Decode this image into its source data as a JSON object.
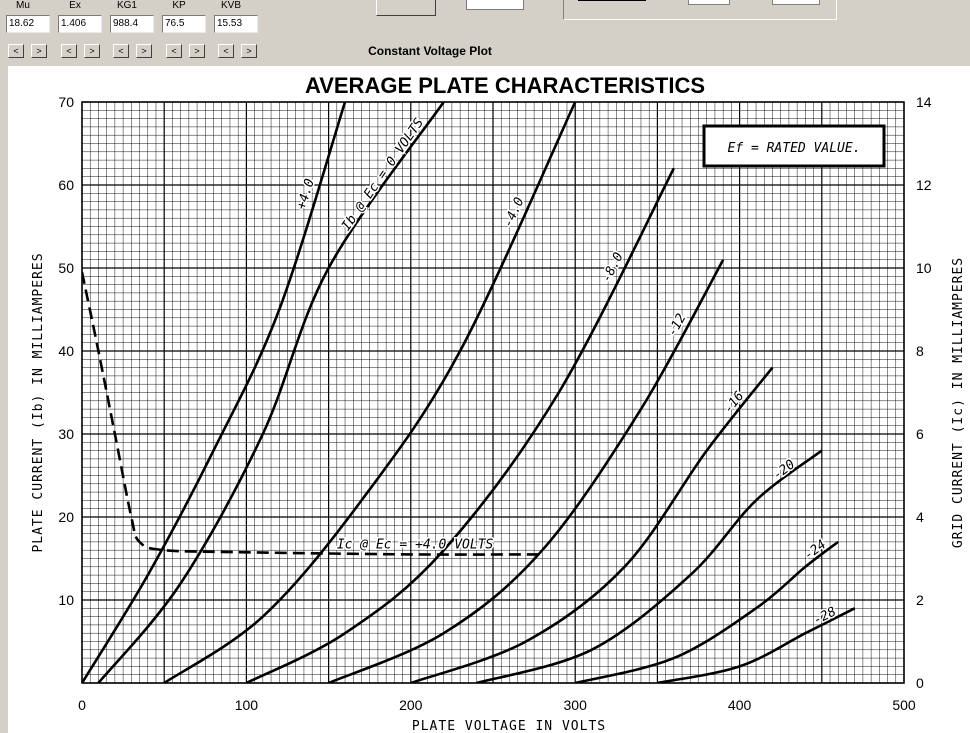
{
  "params": [
    {
      "label": "Mu",
      "value": "18.62"
    },
    {
      "label": "Ex",
      "value": "1.406"
    },
    {
      "label": "KG1",
      "value": "988.4"
    },
    {
      "label": "KP",
      "value": "76.5"
    },
    {
      "label": "KVB",
      "value": "15.53"
    }
  ],
  "spin_left": "<",
  "spin_right": ">",
  "plot_title": "Constant Voltage Plot",
  "chart_data": {
    "type": "line",
    "title": "AVERAGE PLATE CHARACTERISTICS",
    "xlabel": "PLATE VOLTAGE IN VOLTS",
    "ylabel": "PLATE CURRENT (Ib) IN MILLIAMPERES",
    "y2label": "GRID CURRENT (Ic) IN MILLIAMPERES",
    "xlim": [
      0,
      500
    ],
    "ylim": [
      0,
      70
    ],
    "y2lim": [
      0,
      14
    ],
    "xticks": [
      0,
      100,
      200,
      300,
      400,
      500
    ],
    "yticks": [
      10,
      20,
      30,
      40,
      50,
      60,
      70
    ],
    "y2ticks": [
      0,
      2,
      4,
      6,
      8,
      10,
      12,
      14
    ],
    "grid": true,
    "note": "Ef = RATED VALUE.",
    "series": [
      {
        "name": "+4.0",
        "points": [
          [
            0,
            0
          ],
          [
            40,
            13
          ],
          [
            80,
            28
          ],
          [
            120,
            45
          ],
          [
            160,
            70
          ]
        ]
      },
      {
        "name": "Ib @ Ec = 0 VOLTS",
        "points": [
          [
            10,
            0
          ],
          [
            60,
            12
          ],
          [
            110,
            30
          ],
          [
            150,
            50
          ],
          [
            220,
            70
          ]
        ]
      },
      {
        "name": "-4.0",
        "points": [
          [
            50,
            0
          ],
          [
            110,
            8
          ],
          [
            170,
            22
          ],
          [
            230,
            40
          ],
          [
            300,
            70
          ]
        ]
      },
      {
        "name": "-8.0",
        "points": [
          [
            100,
            0
          ],
          [
            160,
            6
          ],
          [
            220,
            16
          ],
          [
            290,
            35
          ],
          [
            360,
            62
          ]
        ]
      },
      {
        "name": "-12",
        "points": [
          [
            150,
            0
          ],
          [
            220,
            6
          ],
          [
            280,
            16
          ],
          [
            340,
            33
          ],
          [
            390,
            51
          ]
        ]
      },
      {
        "name": "-16",
        "points": [
          [
            200,
            0
          ],
          [
            270,
            5
          ],
          [
            330,
            14
          ],
          [
            380,
            28
          ],
          [
            420,
            38
          ]
        ]
      },
      {
        "name": "-20",
        "points": [
          [
            240,
            0
          ],
          [
            310,
            4
          ],
          [
            370,
            13
          ],
          [
            410,
            22
          ],
          [
            450,
            28
          ]
        ]
      },
      {
        "name": "-24",
        "points": [
          [
            300,
            0
          ],
          [
            360,
            3
          ],
          [
            410,
            9
          ],
          [
            440,
            14
          ],
          [
            460,
            17
          ]
        ]
      },
      {
        "name": "-28",
        "points": [
          [
            350,
            0
          ],
          [
            400,
            2
          ],
          [
            440,
            6
          ],
          [
            470,
            9
          ]
        ]
      }
    ],
    "grid_current": {
      "name": "Ic @ Ec = +4.0 VOLTS",
      "axis": "y2",
      "style": "dashed",
      "points": [
        [
          0,
          9.9
        ],
        [
          10,
          8
        ],
        [
          20,
          6
        ],
        [
          30,
          4
        ],
        [
          35,
          3.4
        ],
        [
          50,
          3.2
        ],
        [
          100,
          3.15
        ],
        [
          200,
          3.1
        ],
        [
          280,
          3.1
        ]
      ]
    }
  }
}
